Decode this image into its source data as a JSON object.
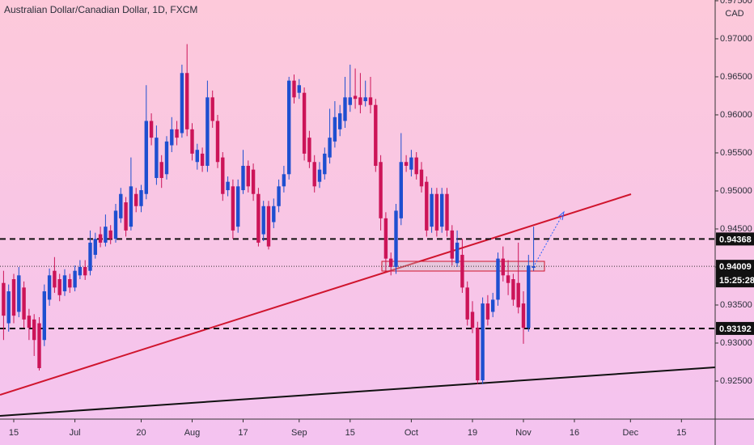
{
  "chart_data": {
    "type": "candlestick",
    "title": "Australian Dollar/Canadian Dollar, 1D, FXCM",
    "y_unit": "CAD",
    "up_color": "#1e4fd0",
    "down_color": "#cc1458",
    "ylim": [
      0.92,
      0.9751
    ],
    "yticks": [
      {
        "value": 0.975,
        "label": "0.97500"
      },
      {
        "value": 0.97,
        "label": "0.97000"
      },
      {
        "value": 0.965,
        "label": "0.96500"
      },
      {
        "value": 0.96,
        "label": "0.96000"
      },
      {
        "value": 0.955,
        "label": "0.95500"
      },
      {
        "value": 0.95,
        "label": "0.95000"
      },
      {
        "value": 0.945,
        "label": "0.94500"
      },
      {
        "value": 0.94,
        "label": "0.94000"
      },
      {
        "value": 0.935,
        "label": "0.93500"
      },
      {
        "value": 0.93,
        "label": "0.93000"
      },
      {
        "value": 0.925,
        "label": "0.92500"
      }
    ],
    "price_lines": [
      0.94368,
      0.93192
    ],
    "last_price": 0.94009,
    "countdown": "15:25:28",
    "categories": [
      null,
      null,
      "15",
      null,
      null,
      null,
      null,
      null,
      null,
      null,
      null,
      null,
      null,
      null,
      "Jul",
      null,
      null,
      null,
      null,
      null,
      null,
      null,
      null,
      null,
      null,
      null,
      null,
      "20",
      null,
      null,
      null,
      null,
      null,
      null,
      null,
      null,
      null,
      "Aug",
      null,
      null,
      null,
      null,
      null,
      null,
      null,
      null,
      null,
      "17",
      null,
      null,
      null,
      null,
      null,
      null,
      null,
      null,
      null,
      null,
      "Sep",
      null,
      null,
      null,
      null,
      null,
      null,
      null,
      null,
      null,
      "15",
      null,
      null,
      null,
      null,
      null,
      null,
      null,
      null,
      null,
      null,
      null,
      "Oct",
      null,
      null,
      null,
      null,
      null,
      null,
      null,
      null,
      null,
      null,
      null,
      "19",
      null,
      null,
      null,
      null,
      null,
      null,
      null,
      null,
      null,
      "Nov",
      null,
      null,
      null,
      null,
      null,
      null,
      null,
      null,
      null,
      "16",
      null,
      null,
      null,
      null,
      null,
      null,
      null,
      null,
      null,
      null,
      "Dec",
      null,
      null,
      null,
      null,
      null,
      null,
      null,
      null,
      null,
      "15",
      null,
      null,
      null,
      null,
      null,
      null
    ],
    "open": [
      0.9379,
      0.9326,
      0.9384,
      0.9341,
      0.9373,
      0.9336,
      0.9331,
      0.9326,
      0.9304,
      0.9357,
      0.9395,
      0.9384,
      0.9368,
      0.9384,
      0.9373,
      0.9389,
      0.94,
      0.9395,
      0.9416,
      0.9443,
      0.9432,
      0.9448,
      0.9437,
      0.9464,
      0.9485,
      0.9453,
      0.9496,
      0.948,
      0.9496,
      0.9592,
      0.9517,
      0.9538,
      0.9522,
      0.956,
      0.9581,
      0.9576,
      0.9655,
      0.9581,
      0.9538,
      0.9549,
      0.9533,
      0.9623,
      0.9592,
      0.9544,
      0.9501,
      0.9506,
      0.9453,
      0.9501,
      0.9533,
      0.9528,
      0.9496,
      0.9443,
      0.948,
      0.9459,
      0.948,
      0.9506,
      0.9522,
      0.9645,
      0.9629,
      0.9629,
      0.957,
      0.9538,
      0.9512,
      0.9522,
      0.9544,
      0.9565,
      0.9581,
      0.9592,
      0.9613,
      0.9625,
      0.9623,
      0.9618,
      0.9623,
      0.9613,
      0.9538,
      0.9464,
      0.9411,
      0.94,
      0.9464,
      0.9538,
      0.9528,
      0.9544,
      0.9528,
      0.9512,
      0.9453,
      0.9496,
      0.9453,
      0.9496,
      0.9448,
      0.9405,
      0.9416,
      0.9373,
      0.9341,
      0.932,
      0.9251,
      0.9352,
      0.9341,
      0.9357,
      0.9411,
      0.9389,
      0.9384,
      0.9379,
      0.9352,
      0.932,
      0.9399,
      null,
      null,
      null,
      null,
      null,
      null,
      null,
      null,
      null,
      null,
      null,
      null,
      null,
      null,
      null,
      null,
      null,
      null,
      null,
      null,
      null,
      null,
      null,
      null,
      null,
      null,
      null,
      null,
      null,
      null,
      null,
      null,
      null,
      null,
      null
    ],
    "high": [
      0.9395,
      0.9377,
      0.9391,
      0.94,
      0.9381,
      0.9345,
      0.9338,
      0.9334,
      0.9377,
      0.9398,
      0.9413,
      0.9391,
      0.9397,
      0.9391,
      0.9402,
      0.9409,
      0.9409,
      0.9448,
      0.9445,
      0.9453,
      0.9469,
      0.9455,
      0.9483,
      0.9504,
      0.9492,
      0.9544,
      0.9504,
      0.9508,
      0.9639,
      0.9602,
      0.9586,
      0.9547,
      0.9572,
      0.9597,
      0.9592,
      0.9666,
      0.9693,
      0.9589,
      0.9562,
      0.9557,
      0.9645,
      0.9632,
      0.96,
      0.9551,
      0.9519,
      0.9515,
      0.9515,
      0.9554,
      0.954,
      0.9536,
      0.9504,
      0.9487,
      0.9487,
      0.949,
      0.9515,
      0.9533,
      0.965,
      0.9653,
      0.9647,
      0.9636,
      0.9579,
      0.9547,
      0.9538,
      0.9557,
      0.9608,
      0.9618,
      0.9613,
      0.965,
      0.9666,
      0.9661,
      0.9655,
      0.9645,
      0.965,
      0.9621,
      0.9547,
      0.9472,
      0.9419,
      0.9483,
      0.9576,
      0.9547,
      0.9554,
      0.9551,
      0.9538,
      0.9519,
      0.9504,
      0.9504,
      0.9504,
      0.9504,
      0.9455,
      0.9448,
      0.9437,
      0.9381,
      0.9355,
      0.9328,
      0.936,
      0.9363,
      0.9366,
      0.9419,
      0.9427,
      0.9409,
      0.9391,
      0.9432,
      0.9368,
      0.9416,
      0.9453,
      null,
      null,
      null,
      null,
      null,
      null,
      null,
      null,
      null,
      null,
      null,
      null,
      null,
      null,
      null,
      null,
      null,
      null,
      null,
      null,
      null,
      null,
      null,
      null,
      null,
      null,
      null,
      null,
      null,
      null,
      null,
      null,
      null,
      null,
      null
    ],
    "low": [
      0.9304,
      0.9315,
      0.9326,
      0.9334,
      0.932,
      0.9304,
      0.9283,
      0.9264,
      0.9296,
      0.9349,
      0.9366,
      0.9355,
      0.9362,
      0.9366,
      0.9368,
      0.9384,
      0.9383,
      0.9389,
      0.9411,
      0.9426,
      0.9427,
      0.943,
      0.9432,
      0.9458,
      0.944,
      0.9448,
      0.9472,
      0.9472,
      0.9489,
      0.956,
      0.9508,
      0.9504,
      0.9515,
      0.9551,
      0.956,
      0.957,
      0.9572,
      0.954,
      0.9528,
      0.9525,
      0.9525,
      0.9583,
      0.953,
      0.9487,
      0.9493,
      0.9437,
      0.9445,
      0.9496,
      0.9498,
      0.9487,
      0.9427,
      0.9434,
      0.9423,
      0.9451,
      0.9472,
      0.9498,
      0.9515,
      0.9615,
      0.9621,
      0.954,
      0.953,
      0.9498,
      0.9504,
      0.9515,
      0.9536,
      0.9557,
      0.9572,
      0.9583,
      0.9604,
      0.9608,
      0.9602,
      0.9611,
      0.9602,
      0.9525,
      0.9448,
      0.9395,
      0.9389,
      0.9391,
      0.9455,
      0.9525,
      0.9519,
      0.9515,
      0.9498,
      0.944,
      0.9445,
      0.944,
      0.9445,
      0.944,
      0.9402,
      0.94,
      0.9366,
      0.9323,
      0.9313,
      0.9246,
      0.9246,
      0.9323,
      0.9334,
      0.9349,
      0.9381,
      0.9363,
      0.9349,
      0.9339,
      0.9299,
      0.9315,
      0.9395,
      null,
      null,
      null,
      null,
      null,
      null,
      null,
      null,
      null,
      null,
      null,
      null,
      null,
      null,
      null,
      null,
      null,
      null,
      null,
      null,
      null,
      null,
      null,
      null,
      null,
      null,
      null,
      null,
      null,
      null,
      null,
      null,
      null,
      null,
      null
    ],
    "close": [
      0.9336,
      0.9368,
      0.9336,
      0.9389,
      0.9331,
      0.932,
      0.9304,
      0.9267,
      0.9368,
      0.9389,
      0.9373,
      0.9363,
      0.9389,
      0.9373,
      0.9395,
      0.94,
      0.9389,
      0.9432,
      0.9437,
      0.9432,
      0.9453,
      0.9437,
      0.9474,
      0.9496,
      0.9448,
      0.9506,
      0.948,
      0.9501,
      0.9592,
      0.957,
      0.957,
      0.9517,
      0.9565,
      0.9581,
      0.957,
      0.9655,
      0.9581,
      0.9549,
      0.9554,
      0.9533,
      0.9623,
      0.9592,
      0.9538,
      0.9496,
      0.9512,
      0.9448,
      0.9506,
      0.9533,
      0.9506,
      0.9496,
      0.9432,
      0.948,
      0.9427,
      0.948,
      0.9506,
      0.9522,
      0.9645,
      0.9623,
      0.9639,
      0.9549,
      0.9538,
      0.9506,
      0.9528,
      0.9549,
      0.957,
      0.9597,
      0.9602,
      0.9623,
      0.9623,
      0.9621,
      0.9613,
      0.9623,
      0.9613,
      0.9533,
      0.9464,
      0.9411,
      0.94,
      0.9474,
      0.9538,
      0.9533,
      0.9544,
      0.9522,
      0.9506,
      0.9448,
      0.9496,
      0.9448,
      0.9496,
      0.9448,
      0.9411,
      0.9432,
      0.9373,
      0.9331,
      0.932,
      0.9251,
      0.9352,
      0.9331,
      0.9357,
      0.9411,
      0.9389,
      0.9379,
      0.9357,
      0.9347,
      0.932,
      0.9402,
      0.94009,
      null,
      null,
      null,
      null,
      null,
      null,
      null,
      null,
      null,
      null,
      null,
      null,
      null,
      null,
      null,
      null,
      null,
      null,
      null,
      null,
      null,
      null,
      null,
      null,
      null,
      null,
      null,
      null,
      null,
      null,
      null,
      null,
      null,
      null,
      null
    ]
  }
}
